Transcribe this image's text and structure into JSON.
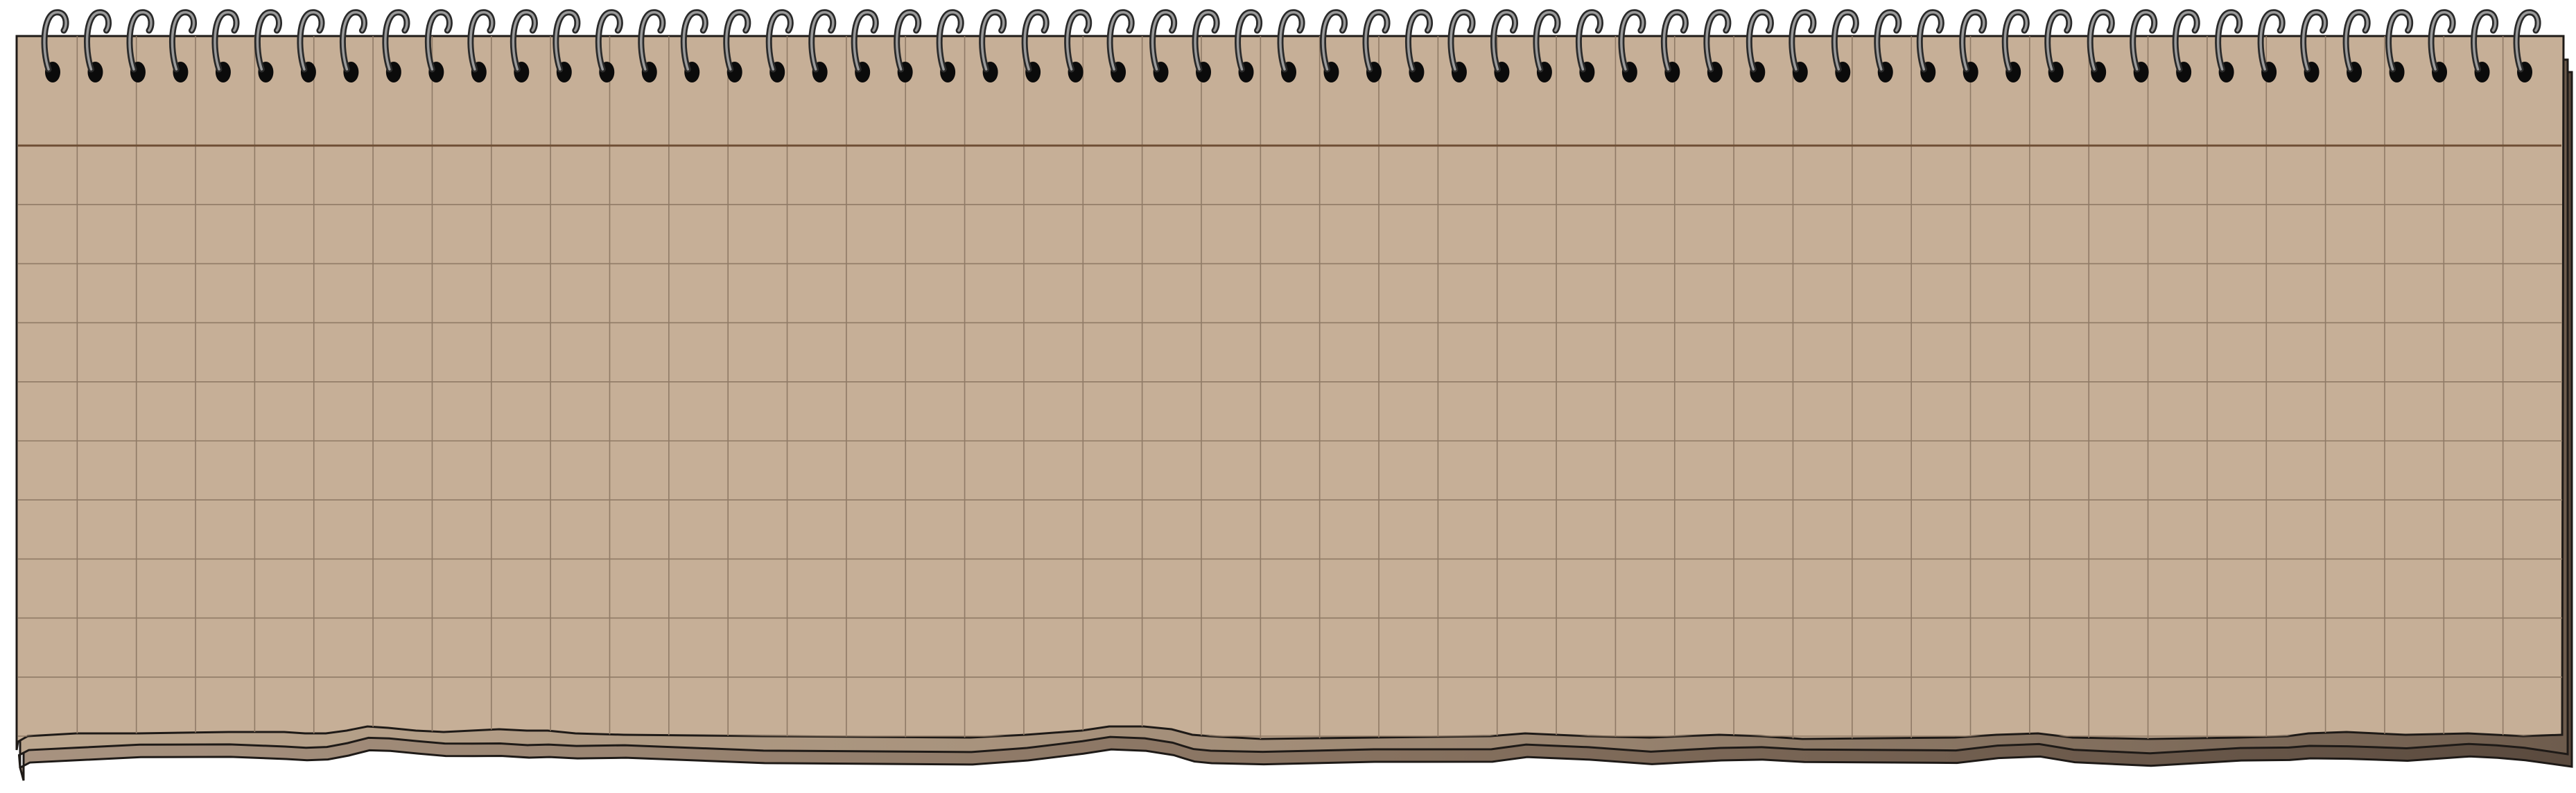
{
  "notepad": {
    "spiral_ring_count": 59,
    "grid_columns": 43,
    "grid_rows": 12,
    "colors": {
      "paper": "#c6af97",
      "grid_line": "#8f7a66",
      "header_rule": "#6e4e34",
      "outline": "#1e1a17",
      "page_stack_light": "#b09a83",
      "page_stack_dark": "#6e5c4d",
      "ring_hole": "#0b0b0b",
      "ring_wire": "#2a2a2a",
      "ring_highlight": "#9a9a9a"
    },
    "icons": {
      "ring": "spiral-ring-icon",
      "hole": "punch-hole-icon"
    }
  }
}
